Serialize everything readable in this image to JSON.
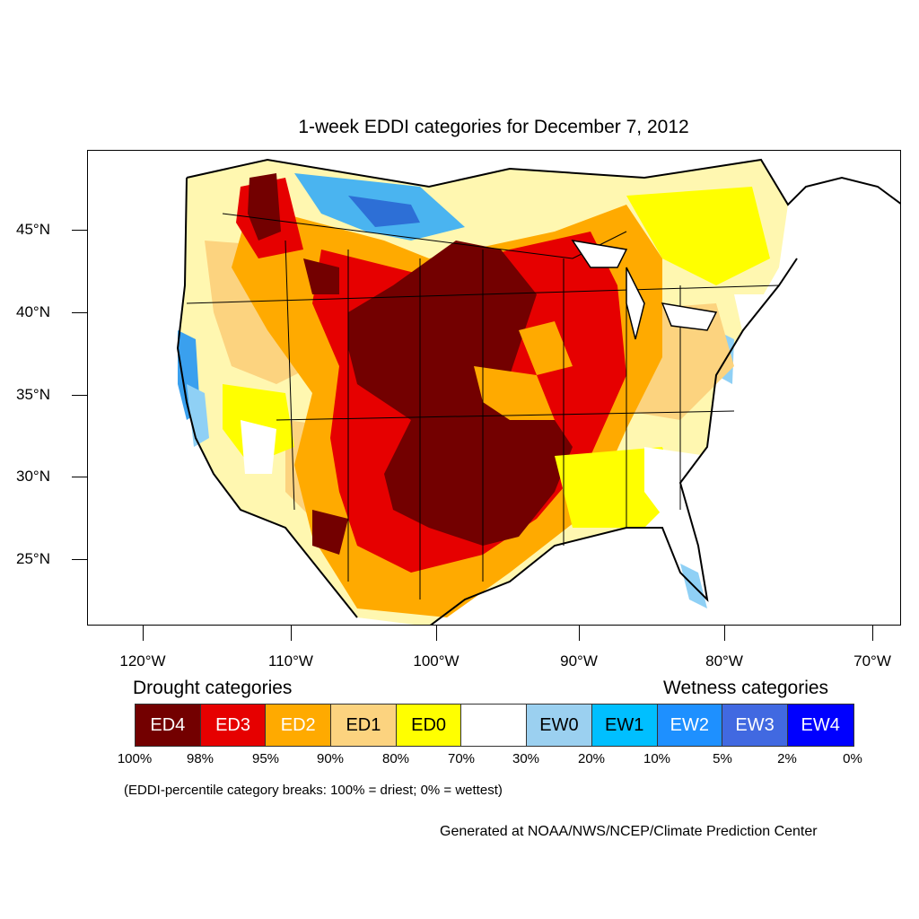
{
  "title": "1-week EDDI categories for December 7, 2012",
  "axes": {
    "lat_labels": [
      "45°N",
      "40°N",
      "35°N",
      "30°N",
      "25°N"
    ],
    "lon_labels": [
      "120°W",
      "110°W",
      "100°W",
      "90°W",
      "80°W",
      "70°W"
    ]
  },
  "legend": {
    "drought_heading": "Drought categories",
    "wetness_heading": "Wetness categories",
    "categories": [
      {
        "label": "ED4",
        "color": "#730000",
        "text_color": "#ffffff"
      },
      {
        "label": "ED3",
        "color": "#e60000",
        "text_color": "#ffffff"
      },
      {
        "label": "ED2",
        "color": "#ffaa00",
        "text_color": "#ffffff"
      },
      {
        "label": "ED1",
        "color": "#fcd37f",
        "text_color": "#000000"
      },
      {
        "label": "ED0",
        "color": "#ffff00",
        "text_color": "#000000"
      },
      {
        "label": "",
        "color": "#ffffff",
        "text_color": "#000000"
      },
      {
        "label": "EW0",
        "color": "#9bd0f0",
        "text_color": "#000000"
      },
      {
        "label": "EW1",
        "color": "#00bfff",
        "text_color": "#000000"
      },
      {
        "label": "EW2",
        "color": "#1e90ff",
        "text_color": "#ffffff"
      },
      {
        "label": "EW3",
        "color": "#4169e1",
        "text_color": "#ffffff"
      },
      {
        "label": "EW4",
        "color": "#0000ff",
        "text_color": "#ffffff"
      }
    ],
    "breaks": [
      "100%",
      "98%",
      "95%",
      "90%",
      "80%",
      "70%",
      "30%",
      "20%",
      "10%",
      "5%",
      "2%",
      "0%"
    ],
    "note": "(EDDI-percentile category breaks: 100% = driest; 0% = wettest)"
  },
  "credit": "Generated at NOAA/NWS/NCEP/Climate Prediction Center"
}
